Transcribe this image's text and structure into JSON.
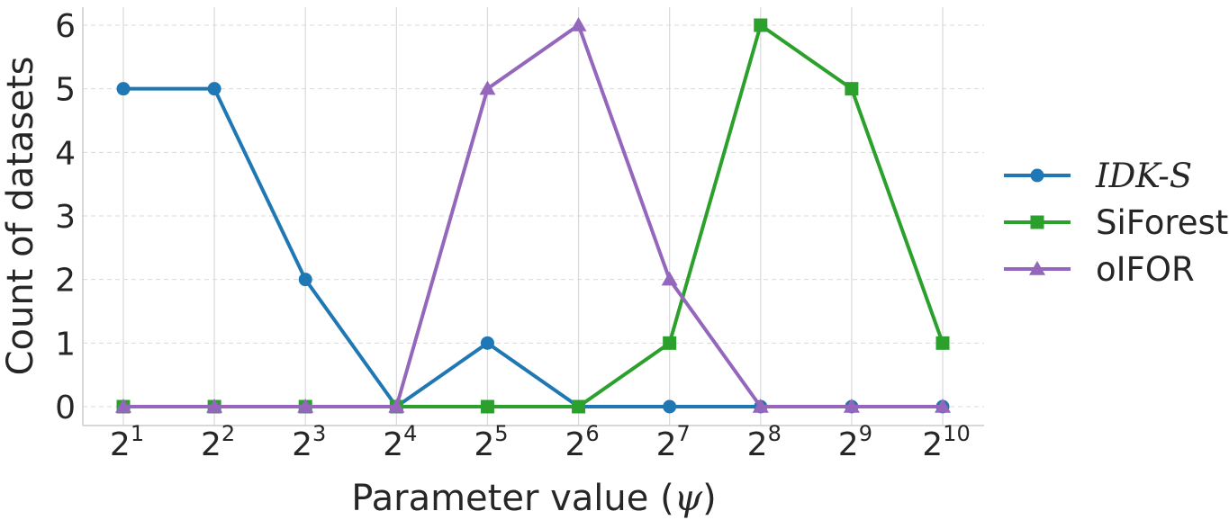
{
  "chart_data": {
    "type": "line",
    "xlabel_prefix": "Parameter value (",
    "xlabel_symbol": "ψ",
    "xlabel_suffix": ")",
    "ylabel": "Count of datasets",
    "x_base": "2",
    "x_exponents": [
      "1",
      "2",
      "3",
      "4",
      "5",
      "6",
      "7",
      "8",
      "9",
      "10"
    ],
    "x_values": [
      2,
      4,
      8,
      16,
      32,
      64,
      128,
      256,
      512,
      1024
    ],
    "x_scale": "log2",
    "ylim": [
      0,
      6
    ],
    "yticks": [
      "0",
      "1",
      "2",
      "3",
      "4",
      "5",
      "6"
    ],
    "grid": true,
    "legend_position": "right",
    "series": [
      {
        "name": "IDK-S",
        "color": "#1f77b4",
        "marker": "circle",
        "values": [
          5,
          5,
          2,
          0,
          1,
          0,
          0,
          0,
          0,
          0
        ]
      },
      {
        "name": "SiForest",
        "color": "#2ca02c",
        "marker": "square",
        "values": [
          0,
          0,
          0,
          0,
          0,
          0,
          1,
          6,
          5,
          1
        ]
      },
      {
        "name": "oIFOR",
        "color": "#9467bd",
        "marker": "triangle",
        "values": [
          0,
          0,
          0,
          0,
          5,
          6,
          2,
          0,
          0,
          0
        ]
      }
    ]
  }
}
